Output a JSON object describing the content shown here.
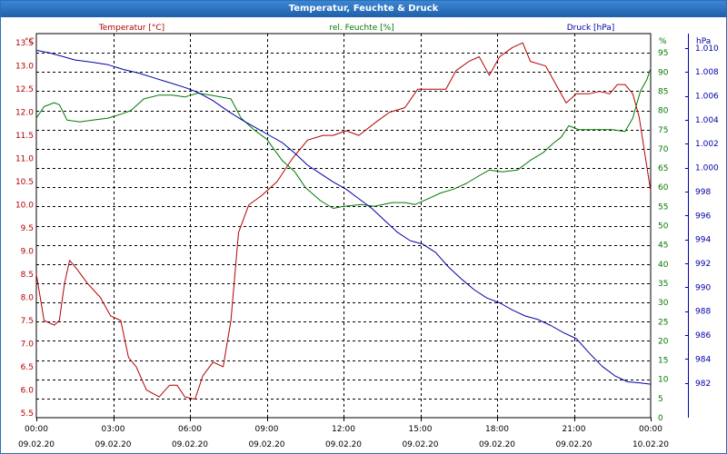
{
  "window": {
    "title": "Temperatur, Feuchte & Druck"
  },
  "colors": {
    "temperature": "#b30000",
    "humidity": "#007a00",
    "pressure": "#0000a8",
    "grid": "#000000",
    "axis": "#000000"
  },
  "chart_data": {
    "type": "line",
    "title": "Temperatur, Feuchte & Druck",
    "x_ticks": [
      {
        "time": "00:00",
        "date": "09.02.20"
      },
      {
        "time": "03:00",
        "date": "09.02.20"
      },
      {
        "time": "06:00",
        "date": "09.02.20"
      },
      {
        "time": "09:00",
        "date": "09.02.20"
      },
      {
        "time": "12:00",
        "date": "09.02.20"
      },
      {
        "time": "15:00",
        "date": "09.02.20"
      },
      {
        "time": "18:00",
        "date": "09.02.20"
      },
      {
        "time": "21:00",
        "date": "09.02.20"
      },
      {
        "time": "00:00",
        "date": "10.02.20"
      }
    ],
    "xlim_hours": [
      0,
      24
    ],
    "axes": {
      "temperature": {
        "unit_label": "°C",
        "series_label": "Temperatur [°C]",
        "ylim": [
          5.4,
          13.7
        ],
        "ticks": [
          "5.5",
          "6.0",
          "6.5",
          "7.0",
          "7.5",
          "8.0",
          "8.5",
          "9.0",
          "9.5",
          "10.0",
          "10.5",
          "11.0",
          "11.5",
          "12.0",
          "12.5",
          "13.0",
          "13.5"
        ]
      },
      "humidity": {
        "unit_label": "%",
        "series_label": "rel. Feuchte [%]",
        "ylim": [
          0,
          100
        ],
        "ticks": [
          "0",
          "5",
          "10",
          "15",
          "20",
          "25",
          "30",
          "35",
          "40",
          "45",
          "50",
          "55",
          "60",
          "65",
          "70",
          "75",
          "80",
          "85",
          "90",
          "95"
        ]
      },
      "pressure": {
        "unit_label": "hPa",
        "series_label": "Druck [hPa]",
        "ylim": [
          979.1,
          1011.2
        ],
        "ticks": [
          "982",
          "984",
          "986",
          "988",
          "990",
          "992",
          "994",
          "996",
          "998",
          "1.000",
          "1.002",
          "1.004",
          "1.006",
          "1.008",
          "1.010"
        ]
      }
    },
    "series": [
      {
        "name": "Temperatur [°C]",
        "axis": "temperature",
        "points": [
          [
            0,
            8.5
          ],
          [
            0.3,
            7.5
          ],
          [
            0.7,
            7.4
          ],
          [
            0.9,
            7.5
          ],
          [
            1.1,
            8.3
          ],
          [
            1.3,
            8.8
          ],
          [
            1.6,
            8.6
          ],
          [
            2.0,
            8.3
          ],
          [
            2.5,
            8.0
          ],
          [
            2.9,
            7.6
          ],
          [
            3.3,
            7.5
          ],
          [
            3.6,
            6.7
          ],
          [
            3.9,
            6.5
          ],
          [
            4.3,
            6.0
          ],
          [
            4.8,
            5.85
          ],
          [
            5.2,
            6.1
          ],
          [
            5.5,
            6.1
          ],
          [
            5.8,
            5.85
          ],
          [
            6.2,
            5.8
          ],
          [
            6.5,
            6.3
          ],
          [
            6.9,
            6.6
          ],
          [
            7.3,
            6.5
          ],
          [
            7.6,
            7.5
          ],
          [
            7.9,
            9.4
          ],
          [
            8.3,
            10.0
          ],
          [
            8.8,
            10.2
          ],
          [
            9.4,
            10.5
          ],
          [
            10.0,
            11.0
          ],
          [
            10.6,
            11.4
          ],
          [
            11.2,
            11.5
          ],
          [
            11.6,
            11.5
          ],
          [
            12.1,
            11.6
          ],
          [
            12.6,
            11.5
          ],
          [
            13.3,
            11.8
          ],
          [
            13.8,
            12.0
          ],
          [
            14.4,
            12.1
          ],
          [
            14.9,
            12.5
          ],
          [
            15.3,
            12.5
          ],
          [
            16.0,
            12.5
          ],
          [
            16.4,
            12.9
          ],
          [
            16.9,
            13.1
          ],
          [
            17.3,
            13.2
          ],
          [
            17.7,
            12.8
          ],
          [
            18.1,
            13.2
          ],
          [
            18.6,
            13.4
          ],
          [
            19.0,
            13.5
          ],
          [
            19.3,
            13.1
          ],
          [
            19.9,
            13.0
          ],
          [
            20.3,
            12.6
          ],
          [
            20.7,
            12.2
          ],
          [
            21.1,
            12.4
          ],
          [
            21.6,
            12.4
          ],
          [
            22.0,
            12.45
          ],
          [
            22.4,
            12.4
          ],
          [
            22.7,
            12.6
          ],
          [
            23.0,
            12.6
          ],
          [
            23.3,
            12.4
          ],
          [
            23.55,
            11.9
          ],
          [
            23.8,
            11.0
          ],
          [
            24.0,
            10.3
          ]
        ]
      },
      {
        "name": "rel. Feuchte [%]",
        "axis": "humidity",
        "points": [
          [
            0,
            78
          ],
          [
            0.3,
            81
          ],
          [
            0.7,
            82
          ],
          [
            0.9,
            81.5
          ],
          [
            1.2,
            77.5
          ],
          [
            1.7,
            77
          ],
          [
            2.2,
            77.5
          ],
          [
            2.8,
            78
          ],
          [
            3.3,
            79
          ],
          [
            3.7,
            80
          ],
          [
            4.2,
            83
          ],
          [
            4.8,
            84
          ],
          [
            5.3,
            84
          ],
          [
            5.8,
            83.5
          ],
          [
            6.3,
            84.5
          ],
          [
            6.8,
            84
          ],
          [
            7.2,
            83.5
          ],
          [
            7.6,
            83
          ],
          [
            8.0,
            78
          ],
          [
            8.5,
            75
          ],
          [
            9.0,
            72.5
          ],
          [
            9.6,
            67
          ],
          [
            10.1,
            64
          ],
          [
            10.5,
            60
          ],
          [
            11.1,
            56.5
          ],
          [
            11.6,
            54.5
          ],
          [
            12.0,
            55
          ],
          [
            12.7,
            55.5
          ],
          [
            13.2,
            55
          ],
          [
            13.9,
            56
          ],
          [
            14.4,
            56
          ],
          [
            14.8,
            55.5
          ],
          [
            15.3,
            57
          ],
          [
            15.8,
            58.5
          ],
          [
            16.3,
            59.5
          ],
          [
            16.8,
            61
          ],
          [
            17.3,
            63
          ],
          [
            17.7,
            64.5
          ],
          [
            18.2,
            64
          ],
          [
            18.8,
            64.5
          ],
          [
            19.3,
            67
          ],
          [
            19.8,
            69
          ],
          [
            20.2,
            71.5
          ],
          [
            20.5,
            73
          ],
          [
            20.8,
            76
          ],
          [
            21.2,
            75
          ],
          [
            21.7,
            75
          ],
          [
            22.2,
            75
          ],
          [
            22.5,
            75
          ],
          [
            23.0,
            74.5
          ],
          [
            23.3,
            78
          ],
          [
            23.6,
            85
          ],
          [
            23.85,
            88
          ],
          [
            24.0,
            91
          ]
        ]
      },
      {
        "name": "Druck [hPa]",
        "axis": "pressure",
        "points": [
          [
            0,
            1009.8
          ],
          [
            0.5,
            1009.6
          ],
          [
            1.0,
            1009.3
          ],
          [
            1.5,
            1009.0
          ],
          [
            2.2,
            1008.8
          ],
          [
            2.8,
            1008.6
          ],
          [
            3.4,
            1008.2
          ],
          [
            4.0,
            1007.9
          ],
          [
            4.6,
            1007.5
          ],
          [
            5.2,
            1007.1
          ],
          [
            5.8,
            1006.7
          ],
          [
            6.3,
            1006.3
          ],
          [
            6.9,
            1005.6
          ],
          [
            7.5,
            1004.7
          ],
          [
            8.1,
            1003.9
          ],
          [
            8.6,
            1003.3
          ],
          [
            9.1,
            1002.7
          ],
          [
            9.6,
            1002.1
          ],
          [
            10.1,
            1001.2
          ],
          [
            10.6,
            1000.2
          ],
          [
            11.1,
            999.5
          ],
          [
            11.6,
            998.8
          ],
          [
            12.1,
            998.2
          ],
          [
            12.6,
            997.4
          ],
          [
            13.1,
            996.6
          ],
          [
            13.6,
            995.6
          ],
          [
            14.1,
            994.6
          ],
          [
            14.6,
            993.9
          ],
          [
            15.1,
            993.6
          ],
          [
            15.6,
            992.9
          ],
          [
            16.1,
            991.7
          ],
          [
            16.6,
            990.7
          ],
          [
            17.1,
            989.8
          ],
          [
            17.6,
            989.1
          ],
          [
            18.1,
            988.7
          ],
          [
            18.6,
            988.1
          ],
          [
            19.1,
            987.6
          ],
          [
            19.6,
            987.3
          ],
          [
            20.1,
            986.8
          ],
          [
            20.6,
            986.2
          ],
          [
            21.1,
            985.7
          ],
          [
            21.6,
            984.5
          ],
          [
            22.1,
            983.4
          ],
          [
            22.6,
            982.6
          ],
          [
            23.1,
            982.1
          ],
          [
            23.6,
            982.0
          ],
          [
            24.0,
            981.9
          ]
        ]
      }
    ]
  }
}
